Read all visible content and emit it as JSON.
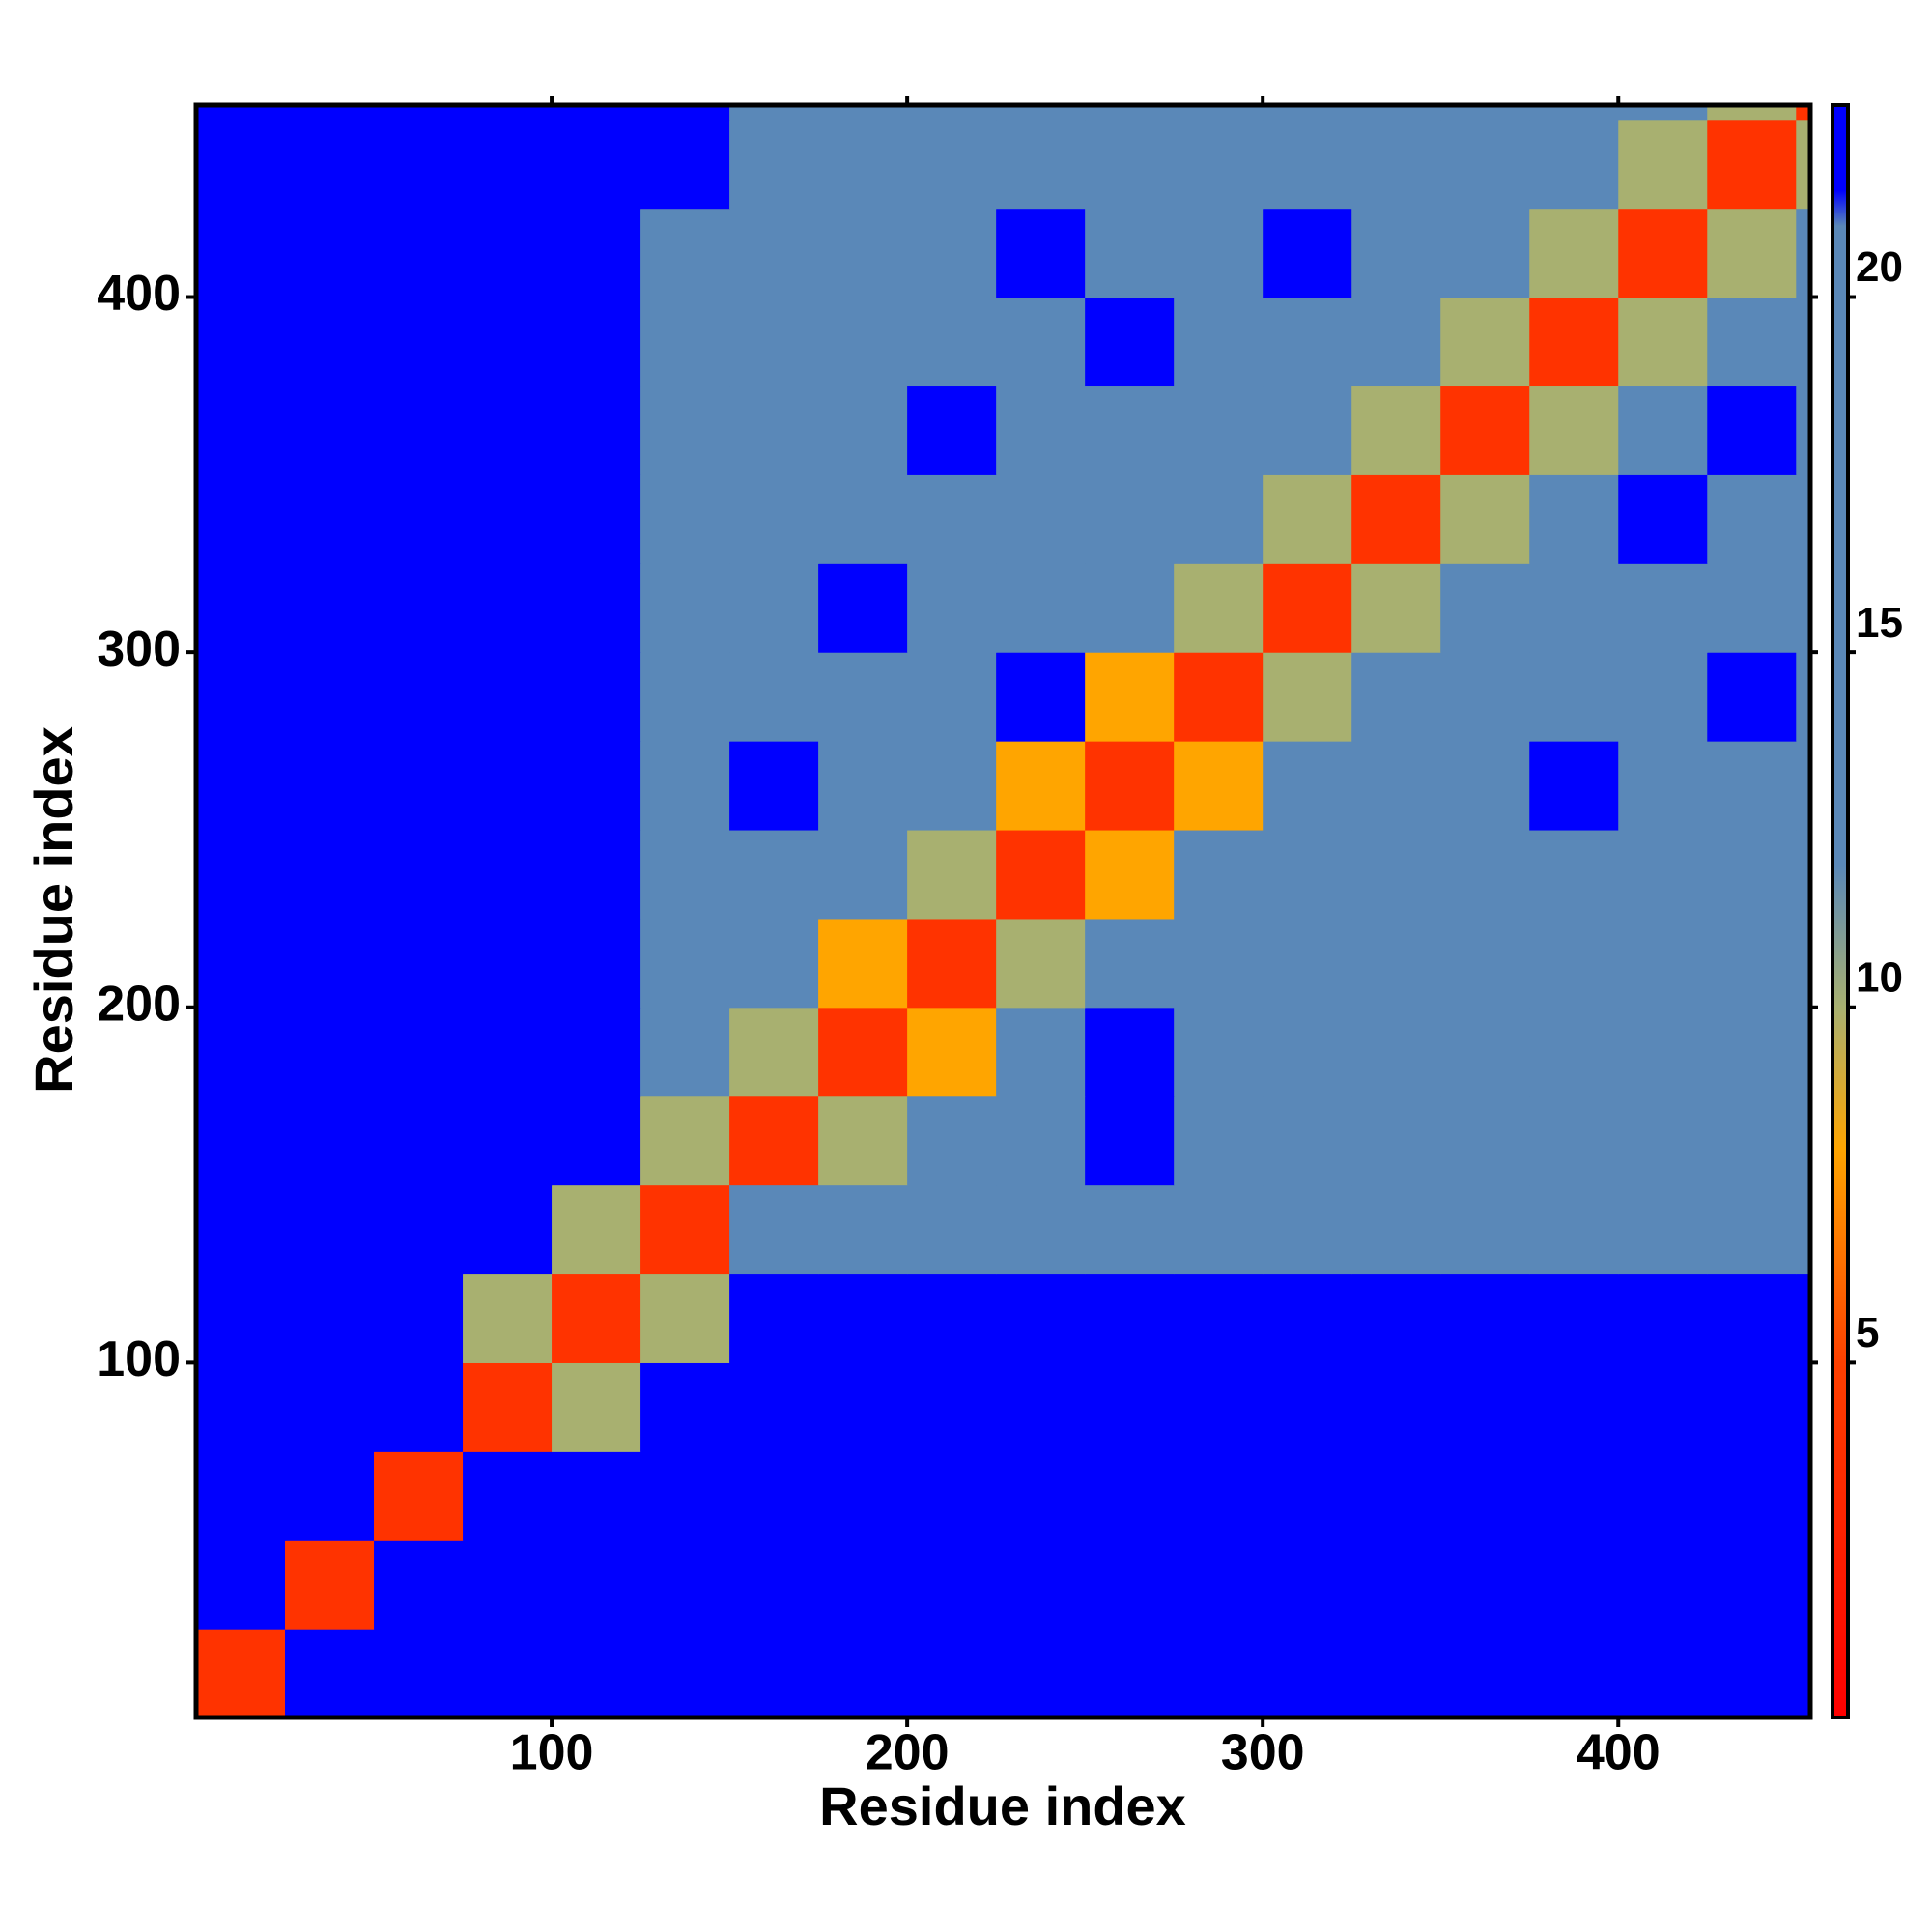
{
  "chart_data": {
    "type": "heatmap",
    "xlabel": "Residue index",
    "ylabel": "Residue index",
    "xlim": [
      0,
      454
    ],
    "ylim": [
      0,
      454
    ],
    "xticks": [
      100,
      200,
      300,
      400
    ],
    "yticks": [
      100,
      200,
      300,
      400
    ],
    "x_edges": [
      0,
      25,
      50,
      75,
      100,
      125,
      150,
      175,
      200,
      225,
      250,
      275,
      300,
      325,
      350,
      375,
      400,
      425,
      450,
      454
    ],
    "y_edges": [
      0,
      25,
      50,
      75,
      100,
      125,
      150,
      175,
      200,
      225,
      250,
      275,
      300,
      325,
      350,
      375,
      400,
      425,
      450,
      454
    ],
    "z": [
      [
        4,
        22,
        22,
        22,
        22,
        22,
        22,
        22,
        22,
        22,
        22,
        22,
        22,
        22,
        22,
        22,
        22,
        22,
        22
      ],
      [
        22,
        4,
        22,
        22,
        22,
        22,
        22,
        22,
        22,
        22,
        22,
        22,
        22,
        22,
        22,
        22,
        22,
        22,
        22
      ],
      [
        22,
        22,
        4,
        22,
        22,
        22,
        22,
        22,
        22,
        22,
        22,
        22,
        22,
        22,
        22,
        22,
        22,
        22,
        22
      ],
      [
        22,
        22,
        22,
        4,
        10,
        22,
        22,
        22,
        22,
        22,
        22,
        22,
        22,
        22,
        22,
        22,
        22,
        22,
        22
      ],
      [
        22,
        22,
        22,
        10,
        4,
        10,
        22,
        22,
        22,
        22,
        22,
        22,
        22,
        22,
        22,
        22,
        22,
        22,
        22
      ],
      [
        22,
        22,
        22,
        22,
        10,
        4,
        13,
        20,
        20,
        20,
        20,
        20,
        20,
        20,
        20,
        20,
        20,
        20,
        20
      ],
      [
        22,
        22,
        22,
        22,
        22,
        10,
        4,
        10,
        17,
        17,
        22,
        17,
        17,
        17,
        17,
        17,
        17,
        17,
        17
      ],
      [
        22,
        22,
        22,
        22,
        22,
        17,
        10,
        4,
        8,
        17,
        22,
        17,
        17,
        17,
        17,
        17,
        17,
        17,
        17
      ],
      [
        22,
        22,
        22,
        22,
        22,
        17,
        17,
        8,
        4,
        10,
        17,
        17,
        17,
        17,
        17,
        17,
        17,
        17,
        17
      ],
      [
        22,
        22,
        22,
        22,
        22,
        17,
        17,
        17,
        10,
        4,
        8,
        17,
        17,
        17,
        17,
        17,
        17,
        17,
        17
      ],
      [
        22,
        22,
        22,
        22,
        22,
        17,
        22,
        17,
        17,
        8,
        4,
        8,
        17,
        17,
        17,
        22,
        17,
        17,
        17
      ],
      [
        22,
        22,
        22,
        22,
        22,
        17,
        17,
        17,
        13,
        22,
        8,
        4,
        10,
        17,
        17,
        17,
        17,
        22,
        17
      ],
      [
        22,
        22,
        22,
        22,
        22,
        17,
        17,
        22,
        17,
        17,
        17,
        10,
        4,
        10,
        17,
        17,
        17,
        17,
        17
      ],
      [
        22,
        22,
        22,
        22,
        22,
        17,
        17,
        17,
        17,
        13,
        17,
        17,
        10,
        4,
        10,
        17,
        22,
        17,
        17
      ],
      [
        22,
        22,
        22,
        22,
        22,
        13,
        17,
        17,
        22,
        17,
        17,
        17,
        17,
        10,
        4,
        10,
        17,
        22,
        17
      ],
      [
        22,
        22,
        22,
        22,
        22,
        17,
        17,
        17,
        17,
        17,
        22,
        17,
        17,
        17,
        10,
        4,
        10,
        17,
        17
      ],
      [
        22,
        22,
        22,
        22,
        22,
        17,
        17,
        13,
        17,
        22,
        17,
        17,
        22,
        17,
        17,
        10,
        4,
        10,
        17
      ],
      [
        22,
        22,
        22,
        22,
        22,
        22,
        17,
        17,
        17,
        17,
        17,
        17,
        17,
        17,
        17,
        17,
        10,
        4,
        10
      ],
      [
        22,
        22,
        22,
        22,
        22,
        22,
        17,
        17,
        17,
        17,
        17,
        17,
        17,
        17,
        17,
        17,
        17,
        10,
        4
      ]
    ],
    "colorbar": {
      "lim": [
        0,
        22.7
      ],
      "ticks": [
        5,
        10,
        15,
        20
      ]
    },
    "colorscale": [
      [
        0,
        "#ff0000"
      ],
      [
        5,
        "#ff4000"
      ],
      [
        8,
        "#ffa500"
      ],
      [
        10,
        "#a8b070"
      ],
      [
        12,
        "#5a88b8"
      ],
      [
        21,
        "#5a88b8"
      ],
      [
        21.5,
        "#0000ff"
      ],
      [
        22.7,
        "#0000ff"
      ]
    ]
  }
}
